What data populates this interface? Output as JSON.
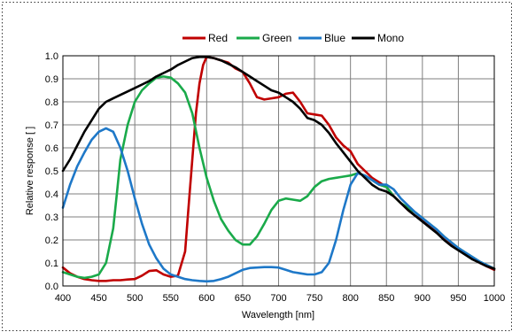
{
  "chart_data": {
    "type": "line",
    "title": "",
    "xlabel": "Wavelength  [nm]",
    "ylabel": "Relative  response  [ ]",
    "xlim": [
      400,
      1000
    ],
    "ylim": [
      0,
      1
    ],
    "x_ticks": [
      "400",
      "450",
      "500",
      "550",
      "600",
      "650",
      "700",
      "750",
      "800",
      "850",
      "900",
      "950",
      "1000"
    ],
    "y_ticks": [
      "0.0",
      "0.1",
      "0.2",
      "0.3",
      "0.4",
      "0.5",
      "0.6",
      "0.7",
      "0.8",
      "0.9",
      "1.0"
    ],
    "grid": true,
    "legend_position": "top",
    "series": [
      {
        "name": "Red",
        "color": "#c00000",
        "points": [
          [
            400,
            0.08
          ],
          [
            410,
            0.055
          ],
          [
            420,
            0.04
          ],
          [
            430,
            0.03
          ],
          [
            440,
            0.025
          ],
          [
            450,
            0.022
          ],
          [
            460,
            0.022
          ],
          [
            470,
            0.025
          ],
          [
            480,
            0.025
          ],
          [
            490,
            0.028
          ],
          [
            500,
            0.03
          ],
          [
            510,
            0.045
          ],
          [
            520,
            0.065
          ],
          [
            530,
            0.068
          ],
          [
            540,
            0.05
          ],
          [
            550,
            0.04
          ],
          [
            560,
            0.045
          ],
          [
            570,
            0.15
          ],
          [
            575,
            0.35
          ],
          [
            580,
            0.55
          ],
          [
            585,
            0.75
          ],
          [
            590,
            0.88
          ],
          [
            595,
            0.96
          ],
          [
            600,
            0.995
          ],
          [
            610,
            0.99
          ],
          [
            620,
            0.98
          ],
          [
            630,
            0.97
          ],
          [
            640,
            0.945
          ],
          [
            650,
            0.93
          ],
          [
            660,
            0.88
          ],
          [
            670,
            0.82
          ],
          [
            680,
            0.81
          ],
          [
            690,
            0.815
          ],
          [
            700,
            0.82
          ],
          [
            710,
            0.835
          ],
          [
            720,
            0.84
          ],
          [
            730,
            0.8
          ],
          [
            740,
            0.75
          ],
          [
            750,
            0.745
          ],
          [
            760,
            0.74
          ],
          [
            770,
            0.7
          ],
          [
            780,
            0.645
          ],
          [
            790,
            0.61
          ],
          [
            800,
            0.585
          ],
          [
            810,
            0.53
          ],
          [
            820,
            0.5
          ],
          [
            830,
            0.47
          ],
          [
            840,
            0.45
          ],
          [
            850,
            0.43
          ],
          [
            860,
            0.39
          ],
          [
            870,
            0.36
          ],
          [
            880,
            0.33
          ],
          [
            890,
            0.305
          ],
          [
            900,
            0.285
          ],
          [
            910,
            0.26
          ],
          [
            920,
            0.235
          ],
          [
            930,
            0.205
          ],
          [
            940,
            0.18
          ],
          [
            950,
            0.16
          ],
          [
            960,
            0.14
          ],
          [
            970,
            0.12
          ],
          [
            980,
            0.1
          ],
          [
            990,
            0.085
          ],
          [
            1000,
            0.07
          ]
        ]
      },
      {
        "name": "Green",
        "color": "#1aaa4a",
        "points": [
          [
            400,
            0.06
          ],
          [
            410,
            0.05
          ],
          [
            420,
            0.04
          ],
          [
            430,
            0.035
          ],
          [
            440,
            0.04
          ],
          [
            450,
            0.05
          ],
          [
            460,
            0.1
          ],
          [
            470,
            0.25
          ],
          [
            475,
            0.4
          ],
          [
            480,
            0.55
          ],
          [
            490,
            0.7
          ],
          [
            500,
            0.8
          ],
          [
            510,
            0.85
          ],
          [
            520,
            0.88
          ],
          [
            530,
            0.905
          ],
          [
            540,
            0.91
          ],
          [
            550,
            0.905
          ],
          [
            560,
            0.88
          ],
          [
            570,
            0.84
          ],
          [
            580,
            0.75
          ],
          [
            590,
            0.6
          ],
          [
            600,
            0.47
          ],
          [
            610,
            0.37
          ],
          [
            620,
            0.29
          ],
          [
            630,
            0.24
          ],
          [
            640,
            0.2
          ],
          [
            650,
            0.18
          ],
          [
            660,
            0.18
          ],
          [
            670,
            0.215
          ],
          [
            680,
            0.27
          ],
          [
            690,
            0.33
          ],
          [
            700,
            0.37
          ],
          [
            710,
            0.38
          ],
          [
            720,
            0.375
          ],
          [
            730,
            0.37
          ],
          [
            740,
            0.39
          ],
          [
            750,
            0.43
          ],
          [
            760,
            0.455
          ],
          [
            770,
            0.465
          ],
          [
            780,
            0.47
          ],
          [
            790,
            0.475
          ],
          [
            800,
            0.48
          ],
          [
            810,
            0.49
          ],
          [
            820,
            0.48
          ],
          [
            830,
            0.46
          ],
          [
            840,
            0.44
          ],
          [
            850,
            0.43
          ],
          [
            860,
            0.39
          ],
          [
            870,
            0.36
          ],
          [
            880,
            0.34
          ],
          [
            890,
            0.32
          ],
          [
            900,
            0.295
          ],
          [
            910,
            0.27
          ],
          [
            920,
            0.245
          ],
          [
            930,
            0.215
          ],
          [
            940,
            0.19
          ],
          [
            950,
            0.165
          ],
          [
            960,
            0.145
          ],
          [
            970,
            0.125
          ],
          [
            980,
            0.105
          ],
          [
            990,
            0.09
          ],
          [
            1000,
            0.075
          ]
        ]
      },
      {
        "name": "Blue",
        "color": "#1e78c8",
        "points": [
          [
            400,
            0.34
          ],
          [
            410,
            0.44
          ],
          [
            420,
            0.52
          ],
          [
            430,
            0.58
          ],
          [
            440,
            0.635
          ],
          [
            450,
            0.67
          ],
          [
            460,
            0.685
          ],
          [
            470,
            0.67
          ],
          [
            480,
            0.6
          ],
          [
            490,
            0.5
          ],
          [
            500,
            0.38
          ],
          [
            510,
            0.27
          ],
          [
            520,
            0.18
          ],
          [
            530,
            0.12
          ],
          [
            540,
            0.075
          ],
          [
            550,
            0.05
          ],
          [
            560,
            0.04
          ],
          [
            570,
            0.03
          ],
          [
            580,
            0.025
          ],
          [
            590,
            0.022
          ],
          [
            600,
            0.02
          ],
          [
            610,
            0.022
          ],
          [
            620,
            0.03
          ],
          [
            630,
            0.04
          ],
          [
            640,
            0.055
          ],
          [
            650,
            0.07
          ],
          [
            660,
            0.078
          ],
          [
            670,
            0.08
          ],
          [
            680,
            0.082
          ],
          [
            690,
            0.082
          ],
          [
            700,
            0.08
          ],
          [
            710,
            0.07
          ],
          [
            720,
            0.06
          ],
          [
            730,
            0.055
          ],
          [
            740,
            0.05
          ],
          [
            750,
            0.05
          ],
          [
            760,
            0.06
          ],
          [
            770,
            0.1
          ],
          [
            780,
            0.2
          ],
          [
            790,
            0.33
          ],
          [
            800,
            0.44
          ],
          [
            810,
            0.49
          ],
          [
            820,
            0.48
          ],
          [
            830,
            0.46
          ],
          [
            840,
            0.44
          ],
          [
            850,
            0.44
          ],
          [
            860,
            0.42
          ],
          [
            870,
            0.38
          ],
          [
            880,
            0.35
          ],
          [
            890,
            0.32
          ],
          [
            900,
            0.295
          ],
          [
            910,
            0.27
          ],
          [
            920,
            0.245
          ],
          [
            930,
            0.215
          ],
          [
            940,
            0.19
          ],
          [
            950,
            0.165
          ],
          [
            960,
            0.145
          ],
          [
            970,
            0.125
          ],
          [
            980,
            0.105
          ],
          [
            990,
            0.09
          ],
          [
            1000,
            0.075
          ]
        ]
      },
      {
        "name": "Mono",
        "color": "#000000",
        "points": [
          [
            400,
            0.5
          ],
          [
            410,
            0.55
          ],
          [
            420,
            0.61
          ],
          [
            430,
            0.67
          ],
          [
            440,
            0.72
          ],
          [
            450,
            0.77
          ],
          [
            460,
            0.8
          ],
          [
            470,
            0.815
          ],
          [
            480,
            0.83
          ],
          [
            490,
            0.845
          ],
          [
            500,
            0.86
          ],
          [
            510,
            0.875
          ],
          [
            520,
            0.89
          ],
          [
            530,
            0.91
          ],
          [
            540,
            0.925
          ],
          [
            550,
            0.94
          ],
          [
            560,
            0.96
          ],
          [
            570,
            0.975
          ],
          [
            580,
            0.99
          ],
          [
            590,
            0.995
          ],
          [
            600,
            0.995
          ],
          [
            610,
            0.99
          ],
          [
            620,
            0.98
          ],
          [
            630,
            0.965
          ],
          [
            640,
            0.95
          ],
          [
            650,
            0.93
          ],
          [
            660,
            0.91
          ],
          [
            670,
            0.89
          ],
          [
            680,
            0.87
          ],
          [
            690,
            0.85
          ],
          [
            700,
            0.84
          ],
          [
            710,
            0.82
          ],
          [
            720,
            0.8
          ],
          [
            730,
            0.77
          ],
          [
            740,
            0.73
          ],
          [
            750,
            0.72
          ],
          [
            760,
            0.7
          ],
          [
            770,
            0.665
          ],
          [
            780,
            0.62
          ],
          [
            790,
            0.58
          ],
          [
            800,
            0.54
          ],
          [
            810,
            0.5
          ],
          [
            820,
            0.47
          ],
          [
            830,
            0.44
          ],
          [
            840,
            0.42
          ],
          [
            850,
            0.41
          ],
          [
            860,
            0.39
          ],
          [
            870,
            0.36
          ],
          [
            880,
            0.33
          ],
          [
            890,
            0.305
          ],
          [
            900,
            0.28
          ],
          [
            910,
            0.255
          ],
          [
            920,
            0.23
          ],
          [
            930,
            0.2
          ],
          [
            940,
            0.175
          ],
          [
            950,
            0.155
          ],
          [
            960,
            0.135
          ],
          [
            970,
            0.115
          ],
          [
            980,
            0.1
          ],
          [
            990,
            0.085
          ],
          [
            1000,
            0.075
          ]
        ]
      }
    ]
  }
}
